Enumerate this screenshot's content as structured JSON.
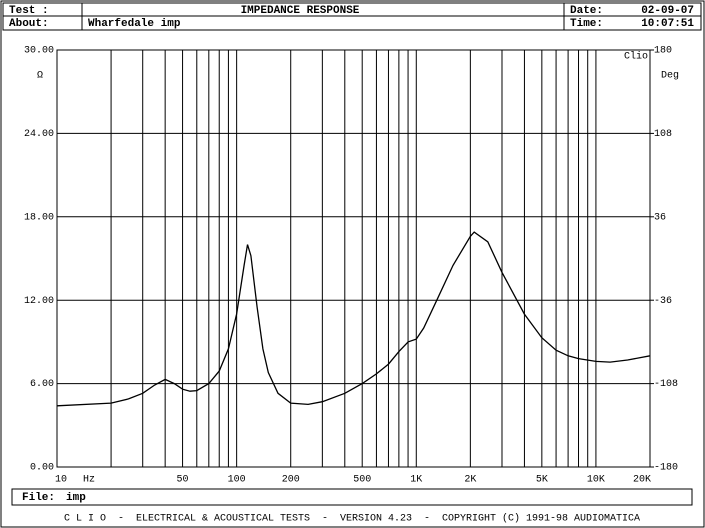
{
  "header": {
    "test_label": "Test :",
    "title": "IMPEDANCE RESPONSE",
    "date_label": "Date:",
    "date": "02-09-07",
    "about_label": "About:",
    "about": "Wharfedale imp",
    "time_label": "Time:",
    "time": "10:07:51"
  },
  "footer": {
    "file_label": "File:",
    "file": "imp",
    "credits": "C L I O  -  ELECTRICAL & ACOUSTICAL TESTS  -  VERSION 4.23  -  COPYRIGHT (C) 1991-98 AUDIOMATICA"
  },
  "chart_data": {
    "type": "line",
    "log_x": true,
    "grid": true,
    "color": "#000000",
    "x_unit": "Hz",
    "y_unit": "Ω",
    "y2_unit": "Deg",
    "brand": "Clio",
    "xlim": [
      10,
      20000
    ],
    "ylim": [
      0,
      30
    ],
    "y2lim": [
      -180,
      180
    ],
    "xticks": [
      10,
      50,
      100,
      200,
      500,
      {
        "value": 1000,
        "label": "1K"
      },
      {
        "value": 2000,
        "label": "2K"
      },
      {
        "value": 5000,
        "label": "5K"
      },
      {
        "value": 10000,
        "label": "10K"
      },
      {
        "value": 20000,
        "label": "20K"
      }
    ],
    "xgrid": [
      20,
      30,
      40,
      60,
      70,
      80,
      90,
      300,
      400,
      600,
      700,
      800,
      900,
      3000,
      4000,
      6000,
      7000,
      8000,
      9000
    ],
    "yticks": [
      {
        "value": 30,
        "label": "30.00"
      },
      {
        "value": 24,
        "label": "24.00"
      },
      {
        "value": 18,
        "label": "18.00"
      },
      {
        "value": 12,
        "label": "12.00"
      },
      {
        "value": 6,
        "label": "6.00"
      },
      {
        "value": 0,
        "label": "0.00"
      }
    ],
    "y2ticks": [
      180,
      108,
      36,
      -36,
      -108,
      -180
    ],
    "series": [
      {
        "name": "Impedance",
        "x": [
          10,
          20,
          25,
          30,
          35,
          40,
          45,
          50,
          55,
          60,
          70,
          80,
          90,
          100,
          110,
          115,
          120,
          130,
          140,
          150,
          170,
          200,
          250,
          300,
          400,
          500,
          600,
          700,
          800,
          900,
          1000,
          1100,
          1300,
          1600,
          2000,
          2100,
          2500,
          3000,
          4000,
          5000,
          6000,
          7000,
          8000,
          10000,
          12000,
          15000,
          20000
        ],
        "values": [
          4.4,
          4.6,
          4.9,
          5.3,
          5.9,
          6.3,
          6.0,
          5.6,
          5.45,
          5.5,
          6.0,
          6.9,
          8.5,
          11.0,
          14.5,
          16.0,
          15.2,
          11.5,
          8.5,
          6.8,
          5.3,
          4.6,
          4.5,
          4.7,
          5.3,
          6.0,
          6.7,
          7.4,
          8.3,
          9.0,
          9.2,
          10.0,
          12.0,
          14.5,
          16.6,
          16.9,
          16.2,
          14.0,
          11.0,
          9.3,
          8.4,
          8.0,
          7.8,
          7.6,
          7.55,
          7.7,
          8.0
        ]
      }
    ]
  }
}
